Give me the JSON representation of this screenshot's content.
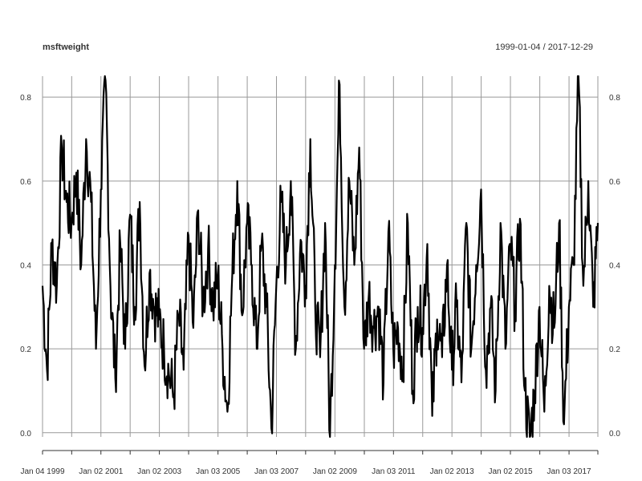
{
  "chart_data": {
    "type": "line",
    "title": "msftweight",
    "date_range": "1999-01-04 / 2017-12-29",
    "x_start": "1999-01-04",
    "x_end": "2017-12-29",
    "x_ticks": [
      {
        "date": "1999-01-04",
        "label": "Jan 04 1999"
      },
      {
        "date": "2000-01-03",
        "label": ""
      },
      {
        "date": "2001-01-02",
        "label": "Jan 02 2001"
      },
      {
        "date": "2002-01-02",
        "label": ""
      },
      {
        "date": "2003-01-02",
        "label": "Jan 02 2003"
      },
      {
        "date": "2004-01-02",
        "label": ""
      },
      {
        "date": "2005-01-03",
        "label": "Jan 03 2005"
      },
      {
        "date": "2006-01-03",
        "label": ""
      },
      {
        "date": "2007-01-03",
        "label": "Jan 03 2007"
      },
      {
        "date": "2008-01-02",
        "label": ""
      },
      {
        "date": "2009-01-02",
        "label": "Jan 02 2009"
      },
      {
        "date": "2010-01-04",
        "label": ""
      },
      {
        "date": "2011-01-03",
        "label": "Jan 03 2011"
      },
      {
        "date": "2012-01-03",
        "label": ""
      },
      {
        "date": "2013-01-02",
        "label": "Jan 02 2013"
      },
      {
        "date": "2014-01-02",
        "label": ""
      },
      {
        "date": "2015-01-02",
        "label": "Jan 02 2015"
      },
      {
        "date": "2016-01-04",
        "label": ""
      },
      {
        "date": "2017-01-03",
        "label": "Jan 03 2017"
      }
    ],
    "y_ticks": [
      {
        "value": 0.0,
        "label": "0.0"
      },
      {
        "value": 0.2,
        "label": "0.2"
      },
      {
        "value": 0.4,
        "label": "0.4"
      },
      {
        "value": 0.6,
        "label": "0.6"
      },
      {
        "value": 0.8,
        "label": "0.8"
      }
    ],
    "ylim": [
      -0.01,
      0.85
    ],
    "grid": true,
    "y_axis_labels": "both-sides",
    "color": "#000000",
    "series": [
      {
        "x": [
          "1999-01-04",
          "1999-03-01",
          "1999-05-01",
          "1999-07-01",
          "1999-09-01",
          "1999-11-01",
          "2000-01-01",
          "2000-03-01",
          "2000-05-01",
          "2000-07-01",
          "2000-09-01",
          "2000-11-01",
          "2001-01-01",
          "2001-03-01",
          "2001-05-01",
          "2001-07-01",
          "2001-09-01",
          "2001-11-01",
          "2002-01-01",
          "2002-03-01",
          "2002-05-01",
          "2002-07-01",
          "2002-09-01",
          "2002-11-01",
          "2003-01-01",
          "2003-03-01",
          "2003-05-01",
          "2003-07-01",
          "2003-09-01",
          "2003-11-01",
          "2004-01-01",
          "2004-03-01",
          "2004-05-01",
          "2004-07-01",
          "2004-09-01",
          "2004-11-01",
          "2005-01-01",
          "2005-03-01",
          "2005-05-01",
          "2005-07-01",
          "2005-09-01",
          "2005-11-01",
          "2006-01-01",
          "2006-03-01",
          "2006-05-01",
          "2006-07-01",
          "2006-09-01",
          "2006-11-01",
          "2007-01-01",
          "2007-03-01",
          "2007-05-01",
          "2007-07-01",
          "2007-09-01",
          "2007-11-01",
          "2008-01-01",
          "2008-03-01",
          "2008-05-01",
          "2008-07-01",
          "2008-09-01",
          "2008-11-01",
          "2009-01-01",
          "2009-03-01",
          "2009-05-01",
          "2009-07-01",
          "2009-09-01",
          "2009-11-01",
          "2010-01-01",
          "2010-03-01",
          "2010-05-01",
          "2010-07-01",
          "2010-09-01",
          "2010-11-01",
          "2011-01-01",
          "2011-03-01",
          "2011-05-01",
          "2011-07-01",
          "2011-09-01",
          "2011-11-01",
          "2012-01-01",
          "2012-03-01",
          "2012-05-01",
          "2012-07-01",
          "2012-09-01",
          "2012-11-01",
          "2013-01-01",
          "2013-03-01",
          "2013-05-01",
          "2013-07-01",
          "2013-09-01",
          "2013-11-01",
          "2014-01-01",
          "2014-03-01",
          "2014-05-01",
          "2014-07-01",
          "2014-09-01",
          "2014-11-01",
          "2015-01-01",
          "2015-03-01",
          "2015-05-01",
          "2015-07-01",
          "2015-09-01",
          "2015-11-01",
          "2016-01-01",
          "2016-03-01",
          "2016-05-01",
          "2016-07-01",
          "2016-09-01",
          "2016-11-01",
          "2017-01-01",
          "2017-03-01",
          "2017-05-01",
          "2017-07-01",
          "2017-09-01",
          "2017-11-01",
          "2017-12-29"
        ],
        "y": [
          0.35,
          0.15,
          0.45,
          0.35,
          0.68,
          0.55,
          0.5,
          0.62,
          0.4,
          0.7,
          0.55,
          0.2,
          0.58,
          0.84,
          0.35,
          0.13,
          0.45,
          0.2,
          0.52,
          0.3,
          0.55,
          0.16,
          0.38,
          0.3,
          0.27,
          0.2,
          0.14,
          0.09,
          0.28,
          0.15,
          0.47,
          0.25,
          0.53,
          0.3,
          0.44,
          0.3,
          0.37,
          0.2,
          0.05,
          0.38,
          0.6,
          0.28,
          0.5,
          0.4,
          0.2,
          0.45,
          0.3,
          0.01,
          0.35,
          0.55,
          0.4,
          0.6,
          0.2,
          0.46,
          0.35,
          0.7,
          0.3,
          0.18,
          0.5,
          -0.01,
          0.4,
          0.83,
          0.3,
          0.6,
          0.4,
          0.68,
          0.2,
          0.33,
          0.25,
          0.3,
          0.12,
          0.48,
          0.2,
          0.25,
          0.15,
          0.5,
          0.1,
          0.3,
          0.25,
          0.45,
          0.04,
          0.27,
          0.18,
          0.4,
          0.15,
          0.3,
          0.12,
          0.5,
          0.2,
          0.4,
          0.58,
          0.15,
          0.3,
          0.1,
          0.5,
          0.2,
          0.45,
          0.3,
          0.51,
          0.1,
          -0.02,
          0.1,
          0.3,
          0.05,
          0.35,
          0.25,
          0.5,
          0.02,
          0.3,
          0.4,
          0.85,
          0.35,
          0.6,
          0.3,
          0.5
        ],
        "values_note": ""
      }
    ]
  }
}
